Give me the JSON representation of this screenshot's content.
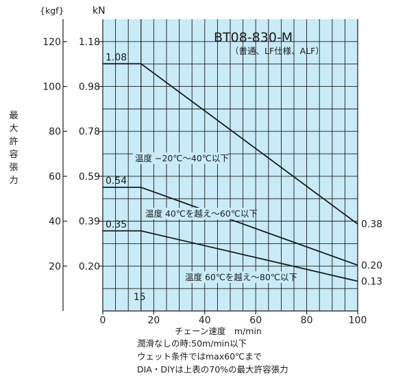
{
  "chart_data": {
    "type": "line",
    "title": "BT08-830-M",
    "subtitle": "（普通、LF仕様、ALF）",
    "xlabel": "チェーン速度　m/min",
    "ylabel": "最大許容張力",
    "xlim": [
      0,
      100
    ],
    "ylim_kgf": [
      0,
      130
    ],
    "x_ticks": [
      "0",
      "20",
      "40",
      "60",
      "80",
      "100"
    ],
    "y_unit_kgf": "{kgf}",
    "y_unit_kn": "kN",
    "y_ticks_kgf": [
      "20",
      "40",
      "60",
      "80",
      "100",
      "120"
    ],
    "y_ticks_kn": [
      "0.20",
      "0.39",
      "0.59",
      "0.78",
      "0.98",
      "1.18"
    ],
    "knee_label": "15",
    "series": [
      {
        "name": "温度 −20℃〜40℃以下",
        "x": [
          0,
          15,
          100
        ],
        "y_kn": [
          1.08,
          1.08,
          0.38
        ],
        "start_label": "1.08",
        "end_label": "0.38"
      },
      {
        "name": "温度 40℃を越え〜60℃以下",
        "x": [
          0,
          15,
          100
        ],
        "y_kn": [
          0.54,
          0.54,
          0.2
        ],
        "start_label": "0.54",
        "end_label": "0.20"
      },
      {
        "name": "温度 60℃を越え〜80℃以下",
        "x": [
          0,
          15,
          100
        ],
        "y_kn": [
          0.35,
          0.35,
          0.13
        ],
        "start_label": "0.35",
        "end_label": "0.13"
      }
    ],
    "grid": true,
    "plot_background": "#c9ebf8",
    "line_color": "#1a1a1a"
  },
  "notes": [
    "潤滑なしの時:50m/min以下",
    "ウェット条件ではmax60℃まで",
    "DIA・DIYは上表の70%の最大許容張力"
  ]
}
